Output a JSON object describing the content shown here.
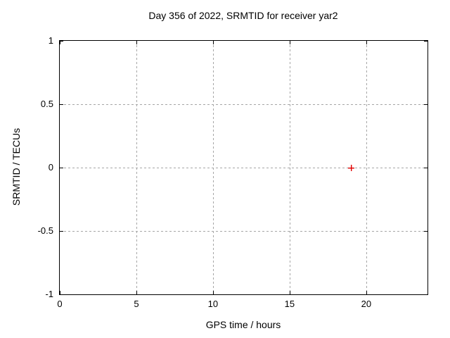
{
  "figure": {
    "background_color": "#ffffff",
    "border_color": "#000000",
    "grid_color": "#a6a6a6",
    "text_color": "#000000"
  },
  "chart_data": {
    "type": "scatter",
    "title": "Day 356 of 2022, SRMTID for receiver yar2",
    "xlabel": "GPS time / hours",
    "ylabel": "SRMTID / TECUs",
    "xlim": [
      0,
      24
    ],
    "ylim": [
      -1,
      1
    ],
    "xticks": [
      0,
      5,
      10,
      15,
      20
    ],
    "xtick_labels": [
      "0",
      "5",
      "10",
      "15",
      "20"
    ],
    "yticks": [
      -1,
      -0.5,
      0,
      0.5,
      1
    ],
    "ytick_labels": [
      "-1",
      "-0.5",
      "0",
      "0.5",
      "1"
    ],
    "grid": true,
    "grid_style": "dotted",
    "legend_position": "none",
    "series": [
      {
        "name": "SRMTID",
        "marker": "plus",
        "color": "#e00000",
        "points": [
          {
            "x": 19,
            "y": 0
          }
        ]
      }
    ]
  }
}
